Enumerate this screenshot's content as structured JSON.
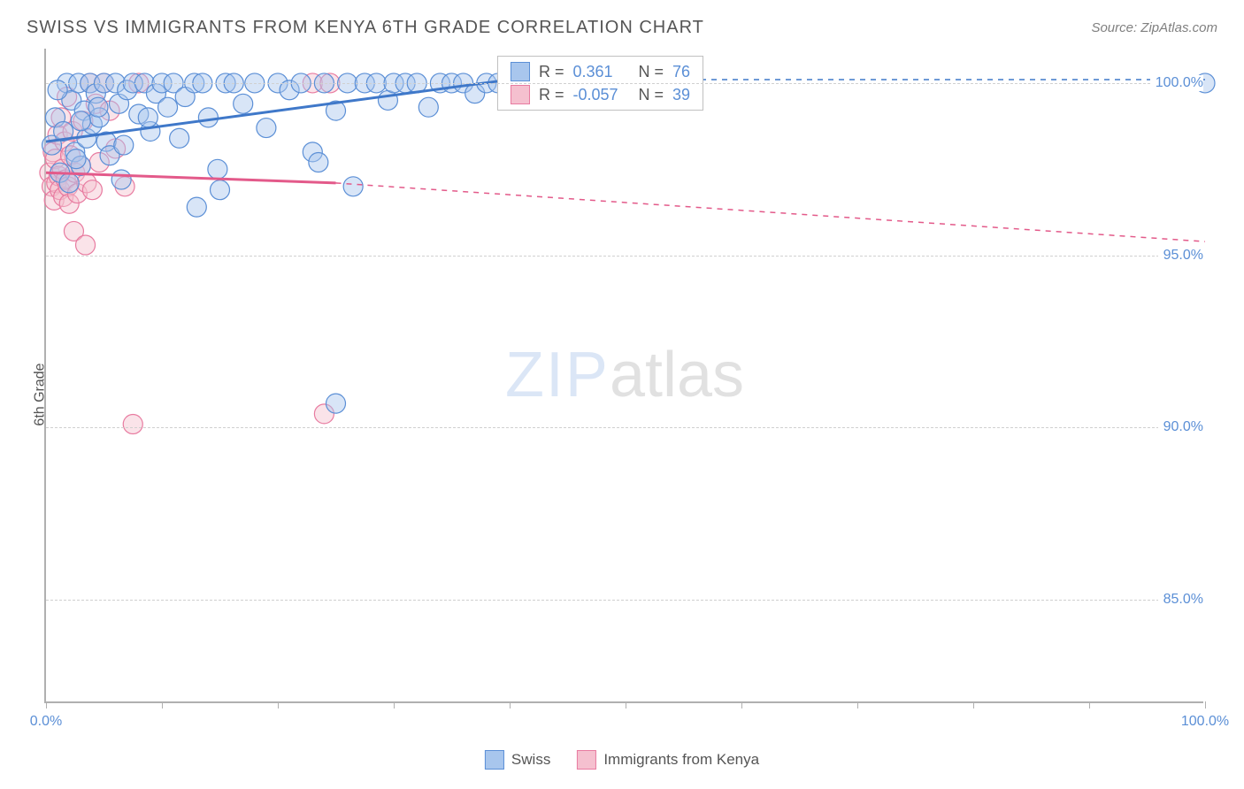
{
  "header": {
    "title": "SWISS VS IMMIGRANTS FROM KENYA 6TH GRADE CORRELATION CHART",
    "source": "Source: ZipAtlas.com"
  },
  "watermark": {
    "part1": "ZIP",
    "part2": "atlas"
  },
  "chart": {
    "type": "scatter",
    "ylabel": "6th Grade",
    "xlim": [
      0,
      100
    ],
    "ylim": [
      82,
      101
    ],
    "x_ticks": [
      0,
      10,
      20,
      30,
      40,
      50,
      60,
      70,
      80,
      90,
      100
    ],
    "x_tick_labels": {
      "0": "0.0%",
      "100": "100.0%"
    },
    "y_gridlines": [
      85,
      90,
      95,
      100
    ],
    "y_tick_labels": {
      "85": "85.0%",
      "90": "90.0%",
      "95": "95.0%",
      "100": "100.0%"
    },
    "background_color": "#ffffff",
    "grid_color": "#d0d0d0",
    "axis_color": "#b0b0b0",
    "label_color": "#5b8fd6",
    "label_fontsize": 16,
    "marker_radius": 11,
    "marker_opacity": 0.45,
    "series": [
      {
        "name": "Swiss",
        "color_fill": "#a8c6ed",
        "color_stroke": "#5b8fd6",
        "R": "0.361",
        "N": "76",
        "trend": {
          "x1": 0,
          "y1": 98.3,
          "x2": 40,
          "y2": 100.1,
          "dash_x2": 100,
          "dash_y2": 100.1,
          "color": "#3f78c9",
          "width": 3
        },
        "points": [
          [
            0.5,
            98.2
          ],
          [
            0.8,
            99.0
          ],
          [
            1.2,
            97.4
          ],
          [
            1.5,
            98.6
          ],
          [
            1.8,
            100.0
          ],
          [
            2.0,
            97.1
          ],
          [
            2.2,
            99.5
          ],
          [
            2.5,
            98.0
          ],
          [
            2.8,
            100.0
          ],
          [
            3.0,
            97.6
          ],
          [
            3.3,
            99.2
          ],
          [
            3.5,
            98.4
          ],
          [
            3.8,
            100.0
          ],
          [
            4.0,
            98.8
          ],
          [
            4.3,
            99.7
          ],
          [
            4.6,
            99.0
          ],
          [
            5.0,
            100.0
          ],
          [
            5.2,
            98.3
          ],
          [
            5.5,
            97.9
          ],
          [
            6.0,
            100.0
          ],
          [
            6.3,
            99.4
          ],
          [
            6.7,
            98.2
          ],
          [
            7.0,
            99.8
          ],
          [
            7.5,
            100.0
          ],
          [
            8.0,
            99.1
          ],
          [
            8.5,
            100.0
          ],
          [
            9.0,
            98.6
          ],
          [
            9.5,
            99.7
          ],
          [
            10.0,
            100.0
          ],
          [
            10.5,
            99.3
          ],
          [
            11.0,
            100.0
          ],
          [
            11.5,
            98.4
          ],
          [
            12.0,
            99.6
          ],
          [
            12.8,
            100.0
          ],
          [
            13.5,
            100.0
          ],
          [
            14.0,
            99.0
          ],
          [
            14.8,
            97.5
          ],
          [
            15.5,
            100.0
          ],
          [
            16.2,
            100.0
          ],
          [
            17.0,
            99.4
          ],
          [
            18.0,
            100.0
          ],
          [
            19.0,
            98.7
          ],
          [
            20.0,
            100.0
          ],
          [
            21.0,
            99.8
          ],
          [
            22.0,
            100.0
          ],
          [
            23.0,
            98.0
          ],
          [
            23.5,
            97.7
          ],
          [
            24.0,
            100.0
          ],
          [
            25.0,
            99.2
          ],
          [
            25.0,
            90.7
          ],
          [
            26.0,
            100.0
          ],
          [
            26.5,
            97.0
          ],
          [
            27.5,
            100.0
          ],
          [
            28.5,
            100.0
          ],
          [
            29.5,
            99.5
          ],
          [
            30.0,
            100.0
          ],
          [
            31.0,
            100.0
          ],
          [
            32.0,
            100.0
          ],
          [
            33.0,
            99.3
          ],
          [
            34.0,
            100.0
          ],
          [
            35.0,
            100.0
          ],
          [
            36.0,
            100.0
          ],
          [
            37.0,
            99.7
          ],
          [
            38.0,
            100.0
          ],
          [
            39.0,
            100.0
          ],
          [
            40.0,
            100.0
          ],
          [
            41.5,
            100.0
          ],
          [
            3.0,
            98.9
          ],
          [
            4.5,
            99.3
          ],
          [
            6.5,
            97.2
          ],
          [
            8.8,
            99.0
          ],
          [
            13.0,
            96.4
          ],
          [
            15.0,
            96.9
          ],
          [
            1.0,
            99.8
          ],
          [
            2.6,
            97.8
          ],
          [
            100.0,
            100.0
          ]
        ]
      },
      {
        "name": "Immigrants from Kenya",
        "color_fill": "#f5c0cf",
        "color_stroke": "#e87ba0",
        "R": "-0.057",
        "N": "39",
        "trend": {
          "x1": 0,
          "y1": 97.4,
          "x2": 25,
          "y2": 97.1,
          "dash_x2": 100,
          "dash_y2": 95.4,
          "color": "#e35a8a",
          "width": 3
        },
        "points": [
          [
            0.3,
            97.4
          ],
          [
            0.5,
            97.0
          ],
          [
            0.6,
            98.0
          ],
          [
            0.7,
            96.6
          ],
          [
            0.8,
            97.8
          ],
          [
            0.9,
            97.1
          ],
          [
            1.0,
            98.5
          ],
          [
            1.1,
            97.3
          ],
          [
            1.2,
            96.9
          ],
          [
            1.3,
            99.0
          ],
          [
            1.4,
            97.5
          ],
          [
            1.5,
            96.7
          ],
          [
            1.6,
            98.3
          ],
          [
            1.7,
            97.2
          ],
          [
            1.8,
            99.6
          ],
          [
            1.9,
            97.0
          ],
          [
            2.0,
            96.5
          ],
          [
            2.1,
            97.9
          ],
          [
            2.3,
            98.6
          ],
          [
            2.5,
            97.4
          ],
          [
            2.7,
            96.8
          ],
          [
            3.0,
            97.6
          ],
          [
            3.2,
            98.9
          ],
          [
            3.5,
            97.1
          ],
          [
            3.8,
            100.0
          ],
          [
            4.0,
            96.9
          ],
          [
            4.3,
            99.4
          ],
          [
            4.6,
            97.7
          ],
          [
            2.4,
            95.7
          ],
          [
            3.4,
            95.3
          ],
          [
            5.0,
            100.0
          ],
          [
            5.5,
            99.2
          ],
          [
            6.0,
            98.1
          ],
          [
            6.8,
            97.0
          ],
          [
            8.0,
            100.0
          ],
          [
            23.0,
            100.0
          ],
          [
            24.5,
            100.0
          ],
          [
            24.0,
            90.4
          ],
          [
            7.5,
            90.1
          ]
        ]
      }
    ]
  },
  "legend_inset": {
    "rows": [
      {
        "swatch_fill": "#a8c6ed",
        "swatch_stroke": "#5b8fd6",
        "R_label": "R =",
        "R": "0.361",
        "N_label": "N =",
        "N": "76"
      },
      {
        "swatch_fill": "#f5c0cf",
        "swatch_stroke": "#e87ba0",
        "R_label": "R =",
        "R": "-0.057",
        "N_label": "N =",
        "N": "39"
      }
    ]
  },
  "legend_bottom": {
    "items": [
      {
        "label": "Swiss",
        "fill": "#a8c6ed",
        "stroke": "#5b8fd6"
      },
      {
        "label": "Immigrants from Kenya",
        "fill": "#f5c0cf",
        "stroke": "#e87ba0"
      }
    ]
  }
}
